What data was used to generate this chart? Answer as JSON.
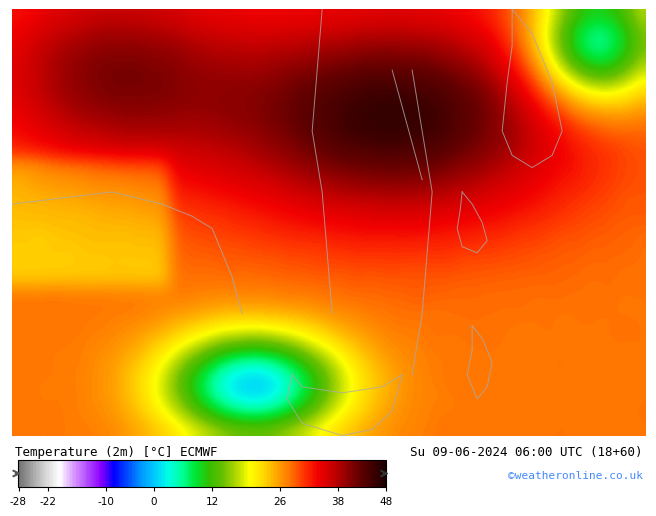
{
  "title_left": "Temperature (2m) [°C] ECMWF",
  "title_right": "Su 09-06-2024 06:00 UTC (18+60)",
  "credit": "©weatheronline.co.uk",
  "colorbar_ticks": [
    -28,
    -22,
    -10,
    0,
    12,
    26,
    38,
    48
  ],
  "colorbar_colors": [
    "#888888",
    "#aaaaaa",
    "#cccccc",
    "#ffffff",
    "#cc88ff",
    "#aa44ff",
    "#8800ff",
    "#0000ff",
    "#0044ff",
    "#0088ff",
    "#00aaff",
    "#00ccff",
    "#00ffff",
    "#00ffaa",
    "#00ff44",
    "#00cc00",
    "#44cc00",
    "#88cc00",
    "#cccc00",
    "#ffff00",
    "#ffcc00",
    "#ff8800",
    "#ff4400",
    "#ff0000",
    "#cc0000",
    "#880000",
    "#440000",
    "#220000"
  ],
  "background_color": "#000000",
  "map_bg_color": "#ff8800",
  "label_color": "#000000",
  "credit_color": "#4488ff"
}
